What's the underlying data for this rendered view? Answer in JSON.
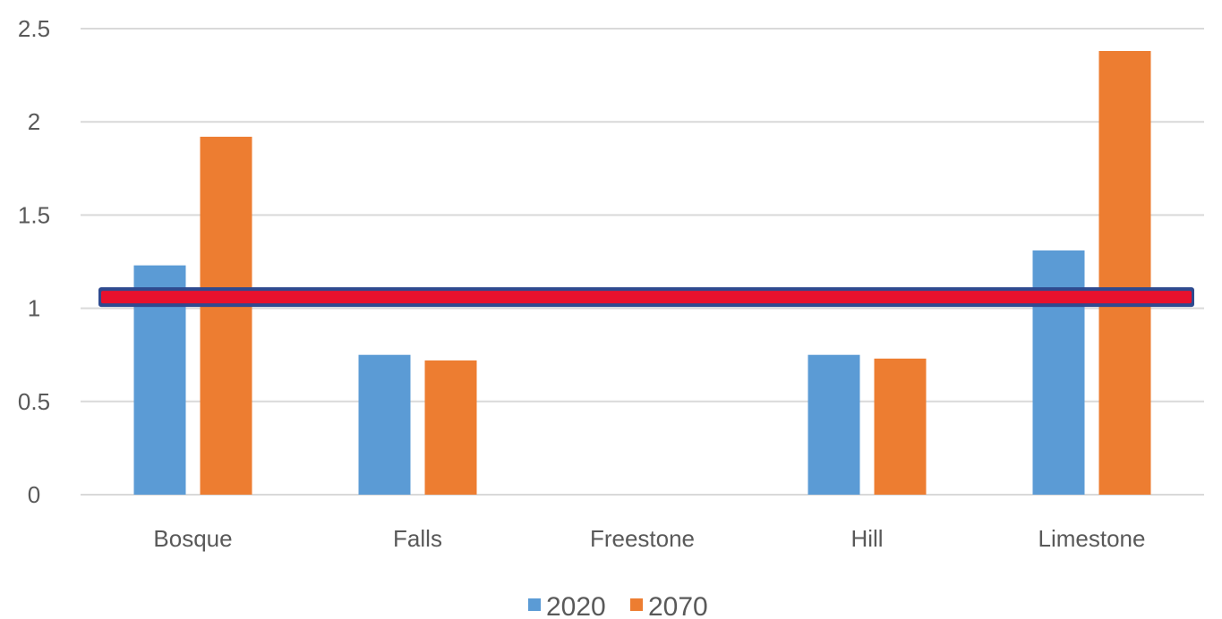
{
  "chart_data": {
    "type": "bar",
    "categories": [
      "Bosque",
      "Falls",
      "Freestone",
      "Hill",
      "Limestone"
    ],
    "series": [
      {
        "name": "2020",
        "values": [
          1.23,
          0.75,
          0,
          0.75,
          1.31
        ],
        "color": "#5b9bd5"
      },
      {
        "name": "2070",
        "values": [
          1.92,
          0.72,
          0,
          0.73,
          2.38
        ],
        "color": "#ed7d31"
      }
    ],
    "y_ticks": [
      "0",
      "0.5",
      "1",
      "1.5",
      "2",
      "2.5"
    ],
    "ylim": [
      0,
      2.5
    ],
    "grid": true,
    "legend_position": "bottom",
    "reference_line": {
      "value": 1.06,
      "color": "#e8112d",
      "border_color": "#2e4a8f"
    },
    "title": "",
    "xlabel": "",
    "ylabel": ""
  }
}
